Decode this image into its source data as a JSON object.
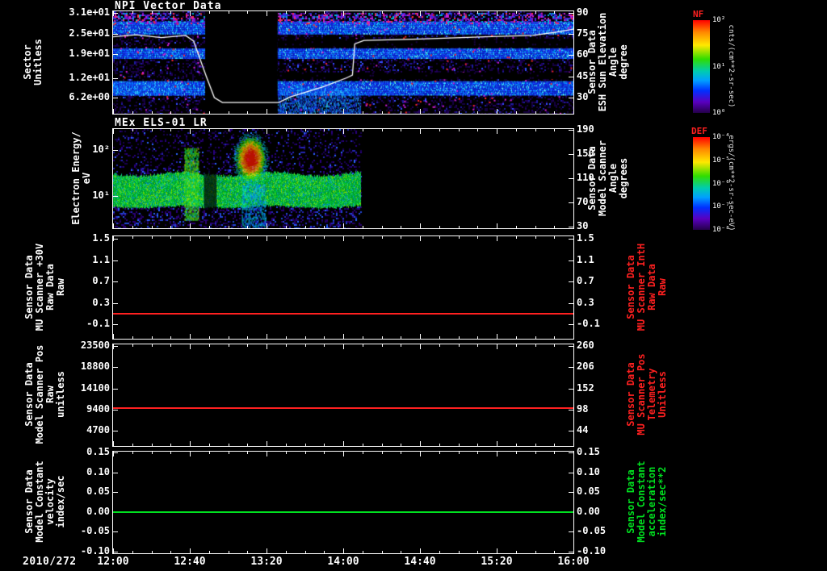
{
  "x_axis": {
    "date_label": "2010/272",
    "tick_labels": [
      "12:00",
      "12:40",
      "13:20",
      "14:00",
      "14:40",
      "15:20",
      "16:00"
    ]
  },
  "panel1": {
    "title": "NPI Vector Data",
    "left_label_lines": [
      "Sector",
      "Unitless"
    ],
    "left_ticks": [
      "3.1e+01",
      "2.5e+01",
      "1.9e+01",
      "1.2e+01",
      "6.2e+00"
    ],
    "right_label_lines": [
      "Sensor Data",
      "ESH Sun Elevation",
      "Angle",
      "degree"
    ],
    "right_ticks": [
      "90",
      "75",
      "60",
      "45",
      "30"
    ],
    "colorbar": {
      "title": "NF",
      "tick_labels": [
        "10²",
        "10¹",
        "10⁰"
      ],
      "units": "cnts/(cm**2-sr-sec)"
    }
  },
  "panel2": {
    "title": "MEx ELS-01 LR",
    "left_label_lines": [
      "Electron Energy/",
      "eV"
    ],
    "left_ticks": [
      "10²",
      "10¹"
    ],
    "right_label_lines": [
      "Sensor Data",
      "Model Scanner",
      "Angle",
      "degrees"
    ],
    "right_ticks": [
      "190",
      "150",
      "110",
      "70",
      "30"
    ],
    "colorbar": {
      "title": "DEF",
      "tick_labels": [
        "10⁻⁴",
        "10⁻⁵",
        "10⁻⁶",
        "10⁻⁷",
        "10⁻⁸"
      ],
      "units": "ergs/(cm**2-sr-sec-eV)"
    }
  },
  "panel3": {
    "left_label_lines": [
      "Sensor Data",
      "MU Scanner +30V",
      "Raw Data",
      "Raw"
    ],
    "left_ticks": [
      "1.5",
      "1.1",
      "0.7",
      "0.3",
      "-0.1"
    ],
    "right_label_lines": [
      "Sensor Data",
      "MU Scanner IntH",
      "Raw Data",
      "Raw"
    ],
    "right_ticks": [
      "1.5",
      "1.1",
      "0.7",
      "0.3",
      "-0.1"
    ],
    "right_label_color": "#ff2020"
  },
  "panel4": {
    "left_label_lines": [
      "Sensor Data",
      "Model Scanner Pos",
      "Raw",
      "unitless"
    ],
    "left_ticks": [
      "23500",
      "18800",
      "14100",
      "9400",
      "4700"
    ],
    "right_label_lines": [
      "Sensor Data",
      "MU Scanner Pos",
      "Telemetry",
      "Unitless"
    ],
    "right_ticks": [
      "260",
      "206",
      "152",
      "98",
      "44"
    ],
    "right_label_color": "#ff2020"
  },
  "panel5": {
    "left_label_lines": [
      "Sensor Data",
      "Model Constant",
      "velocity",
      "index/sec"
    ],
    "left_ticks": [
      "0.15",
      "0.10",
      "0.05",
      "0.00",
      "-0.05",
      "-0.10"
    ],
    "right_label_lines": [
      "Sensor Data",
      "Model Constant",
      "acceleration",
      "index/sec**2"
    ],
    "right_ticks": [
      "0.15",
      "0.10",
      "0.05",
      "0.00",
      "-0.05",
      "-0.10"
    ],
    "right_label_color": "#00e020"
  },
  "chart_data": [
    {
      "type": "heatmap",
      "title": "NPI Vector Data",
      "ylabel": "Sector Unitless",
      "date": "2010/272",
      "x_range_hours": [
        12,
        16
      ],
      "x_tick_labels": [
        "12:00",
        "12:40",
        "13:20",
        "14:00",
        "14:40",
        "15:20",
        "16:00"
      ],
      "y_range_sectors": [
        1.5,
        31.5
      ],
      "y_tick_values": [
        31,
        25,
        19,
        12,
        6.2
      ],
      "right_axis": {
        "label": "Sensor Data ESH Sun Elevation Angle degree",
        "tick_values": [
          90,
          75,
          60,
          45,
          30
        ],
        "y_range": [
          18.6,
          91.1
        ]
      },
      "colorbar": {
        "title": "NF",
        "units": "cnts/(cm**2-sr-sec)",
        "scale": "log",
        "tick_labels": [
          "10²",
          "10¹",
          "10⁰"
        ]
      },
      "data_gap_hours": [
        12.8,
        13.43
      ],
      "bright_sector_bands": [
        [
          25,
          28.5
        ],
        [
          17.8,
          20.6
        ],
        [
          7,
          11
        ]
      ],
      "dark_sector_bands_after_gap": [
        [
          20.8,
          23.4
        ],
        [
          11.6,
          13.6
        ]
      ],
      "bright_patches_hours_sectors": [
        {
          "hours": [
            13.43,
            14.15
          ],
          "sectors": [
            1.5,
            9
          ]
        },
        {
          "hours": [
            12.0,
            12.6
          ],
          "sectors": [
            7,
            11
          ]
        }
      ],
      "overlay_line": {
        "name": "ESH Sun Elevation Angle",
        "units": "degree",
        "color": "#ffffff",
        "points_hour_deg": [
          [
            12.0,
            73
          ],
          [
            12.2,
            74.5
          ],
          [
            12.42,
            72.5
          ],
          [
            12.63,
            74
          ],
          [
            12.7,
            70
          ],
          [
            12.81,
            45
          ],
          [
            12.88,
            30
          ],
          [
            12.95,
            26.5
          ],
          [
            13.44,
            26.5
          ],
          [
            13.54,
            30.5
          ],
          [
            13.82,
            37.5
          ],
          [
            14.03,
            44
          ],
          [
            14.08,
            46
          ],
          [
            14.1,
            68
          ],
          [
            14.18,
            70.5
          ],
          [
            14.67,
            71.5
          ],
          [
            15.23,
            73
          ],
          [
            15.65,
            74
          ],
          [
            15.86,
            76.5
          ],
          [
            16.0,
            78.5
          ]
        ]
      }
    },
    {
      "type": "heatmap",
      "title": "MEx ELS-01 LR",
      "ylabel": "Electron Energy/eV",
      "y_scale": "log",
      "y_range_ev": [
        2,
        286
      ],
      "y_exp_range": [
        0.3,
        2.456
      ],
      "y_tick_exponents": [
        2,
        1
      ],
      "x_range_hours": [
        12,
        16
      ],
      "data_coverage_hours": [
        12.0,
        14.15
      ],
      "right_axis": {
        "label": "Sensor Data Model Scanner Angle degrees",
        "tick_values": [
          190,
          150,
          110,
          70,
          30
        ],
        "y_range": [
          28,
          191
        ]
      },
      "colorbar": {
        "title": "DEF",
        "units": "ergs/(cm**2-sr-sec-eV)",
        "scale": "log",
        "tick_labels": [
          "10⁻⁴",
          "10⁻⁵",
          "10⁻⁶",
          "10⁻⁷",
          "10⁻⁸"
        ]
      },
      "features": {
        "persistent_band_ev": [
          6,
          30
        ],
        "enhancement_column": {
          "hours": [
            12.62,
            12.74
          ],
          "ev": [
            3,
            110
          ]
        },
        "hot_burst": {
          "hours": [
            13.07,
            13.32
          ],
          "ev": [
            22,
            190
          ]
        },
        "cold_column": {
          "hours": [
            13.12,
            13.33
          ],
          "ev": [
            2,
            18
          ]
        },
        "band_gaps_hours": [
          [
            12.79,
            12.9
          ]
        ]
      }
    },
    {
      "type": "line",
      "y_range": [
        -0.37,
        1.55
      ],
      "y_tick_values": [
        1.5,
        1.1,
        0.7,
        0.3,
        -0.1
      ],
      "series": [
        {
          "name": "MU Scanner +30V Raw Data",
          "color": "#ff2020",
          "constant_value": 0.1
        }
      ],
      "right_axis": {
        "label": "Sensor Data MU Scanner IntH Raw Data Raw",
        "tick_values": [
          1.5,
          1.1,
          0.7,
          0.3,
          -0.1
        ]
      }
    },
    {
      "type": "line",
      "y_range": [
        1400,
        23800
      ],
      "y_tick_values": [
        23500,
        18800,
        14100,
        9400,
        4700
      ],
      "series": [
        {
          "name": "Model Scanner Pos Raw",
          "color": "#ff2020",
          "constant_value": 9700
        }
      ],
      "right_axis": {
        "label": "Sensor Data MU Scanner Pos Telemetry Unitless",
        "tick_values": [
          260,
          206,
          152,
          98,
          44
        ],
        "y_range": [
          5.8,
          263.5
        ]
      }
    },
    {
      "type": "line",
      "y_range": [
        -0.104,
        0.152
      ],
      "y_tick_values": [
        0.15,
        0.1,
        0.05,
        0,
        -0.05,
        -0.1
      ],
      "series": [
        {
          "name": "Model Constant velocity",
          "color": "#00e020",
          "constant_value": 0
        }
      ],
      "right_axis": {
        "label": "Sensor Data Model Constant acceleration index/sec**2",
        "tick_values": [
          0.15,
          0.1,
          0.05,
          0,
          -0.05,
          -0.1
        ]
      }
    }
  ]
}
